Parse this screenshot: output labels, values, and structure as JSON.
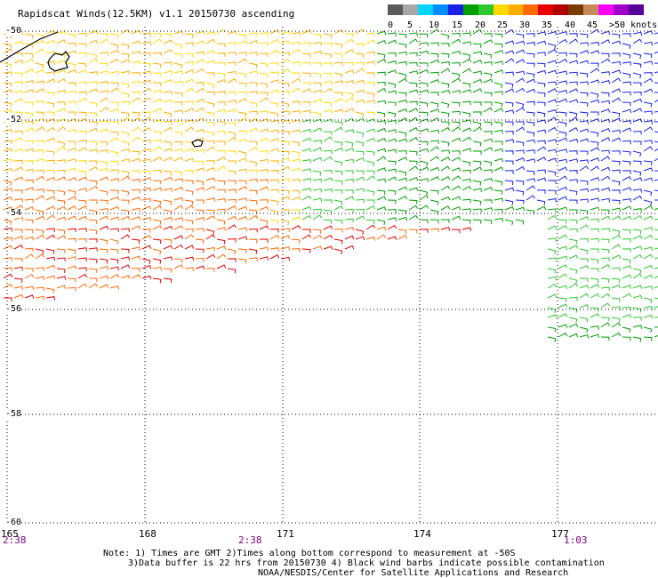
{
  "header": {
    "title": "Rapidscat Winds(12.5KM) v1.1 20150730 ascending"
  },
  "legend": {
    "swatch_colors": [
      "#5a5a5a",
      "#a7a7a7",
      "#00d4ff",
      "#008cff",
      "#1a20e6",
      "#00a000",
      "#2ec82e",
      "#ffd800",
      "#ffae00",
      "#ff6a00",
      "#e60000",
      "#b00000",
      "#7a3a00",
      "#c48a5a",
      "#ff00ff",
      "#a000c8",
      "#5a009a"
    ],
    "tick_labels": [
      "0",
      "5",
      "10",
      "15",
      "20",
      "25",
      "30",
      "35",
      "40",
      "45",
      ">50 knots"
    ]
  },
  "map": {
    "lat_labels": [
      "-50",
      "-52",
      "-54",
      "-56",
      "-58",
      "-60"
    ],
    "lon_labels": [
      "165",
      "168",
      "171",
      "174",
      "177"
    ],
    "time_labels": [
      "2:38",
      "2:38",
      "1:03"
    ]
  },
  "notes": {
    "line1": "Note: 1) Times are GMT 2)Times along bottom correspond to measurement at -50S",
    "line2": "3)Data buffer is 22 hrs from 20150730 4) Black wind barbs indicate possible contamination",
    "line3": "NOAA/NESDIS/Center for Satellite Applications and Research"
  }
}
